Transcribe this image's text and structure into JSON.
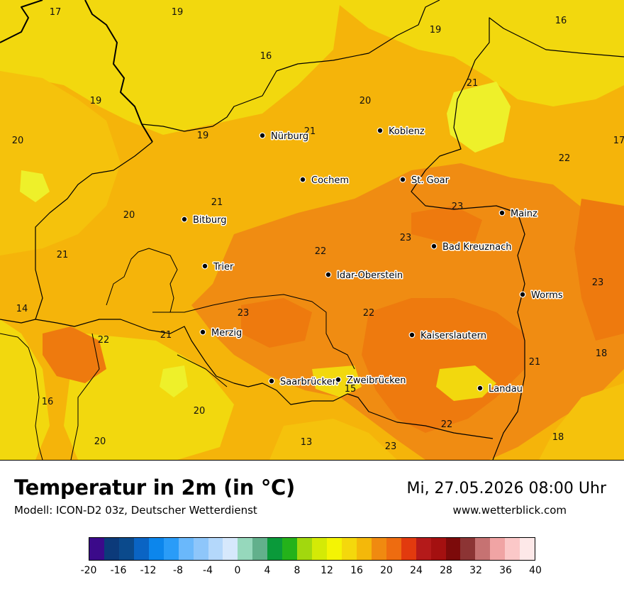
{
  "map": {
    "colors": {
      "t16": "#f2d80e",
      "t18": "#f5c20c",
      "t20": "#f5b40a",
      "t22": "#f08c12",
      "t24": "#ee7a0e",
      "green": "#d6ec1c",
      "yellow": "#eef02a",
      "border": "#000000"
    },
    "cities": [
      {
        "name": "Nürburg"
      },
      {
        "name": "Koblenz"
      },
      {
        "name": "Cochem"
      },
      {
        "name": "St. Goar"
      },
      {
        "name": "Bitburg"
      },
      {
        "name": "Mainz"
      },
      {
        "name": "Bad Kreuznach"
      },
      {
        "name": "Trier"
      },
      {
        "name": "Idar-Oberstein"
      },
      {
        "name": "Worms"
      },
      {
        "name": "Merzig"
      },
      {
        "name": "Kaiserslautern"
      },
      {
        "name": "Saarbrücken"
      },
      {
        "name": "Zweibrücken"
      },
      {
        "name": "Landau"
      }
    ],
    "values": [
      "17",
      "19",
      "16",
      "19",
      "16",
      "21",
      "19",
      "20",
      "20",
      "21",
      "19",
      "22",
      "17",
      "21",
      "20",
      "23",
      "21",
      "23",
      "22",
      "22",
      "14",
      "23",
      "23",
      "22",
      "21",
      "18",
      "21",
      "15",
      "16",
      "20",
      "22",
      "20",
      "13",
      "23",
      "18"
    ]
  },
  "footer": {
    "title": "Temperatur in 2m (in °C)",
    "model": "Modell: ICON-D2 03z, Deutscher Wetterdienst",
    "datetime": "Mi, 27.05.2026 08:00 Uhr",
    "website": "www.wetterblick.com"
  },
  "legend": {
    "colors": [
      "#3b0a8a",
      "#0c3a7a",
      "#0b4a8c",
      "#0a64c4",
      "#0c86ec",
      "#2a9cf8",
      "#6ab8fb",
      "#8ec6fa",
      "#b4d8fb",
      "#d6e8fc",
      "#96d8bc",
      "#62b08c",
      "#0a9a3a",
      "#24b21a",
      "#a2d80e",
      "#d4ea06",
      "#f4f404",
      "#f4d80c",
      "#f4b80a",
      "#f08a10",
      "#ee6c10",
      "#e23a0e",
      "#b41a1a",
      "#a41010",
      "#7c0a0a",
      "#8c3434",
      "#c67272",
      "#f0a4a4",
      "#fbc8c8",
      "#fde8e8"
    ],
    "ticks": [
      "-20",
      "-16",
      "-12",
      "-8",
      "-4",
      "0",
      "4",
      "8",
      "12",
      "16",
      "20",
      "24",
      "28",
      "32",
      "36",
      "40"
    ]
  }
}
